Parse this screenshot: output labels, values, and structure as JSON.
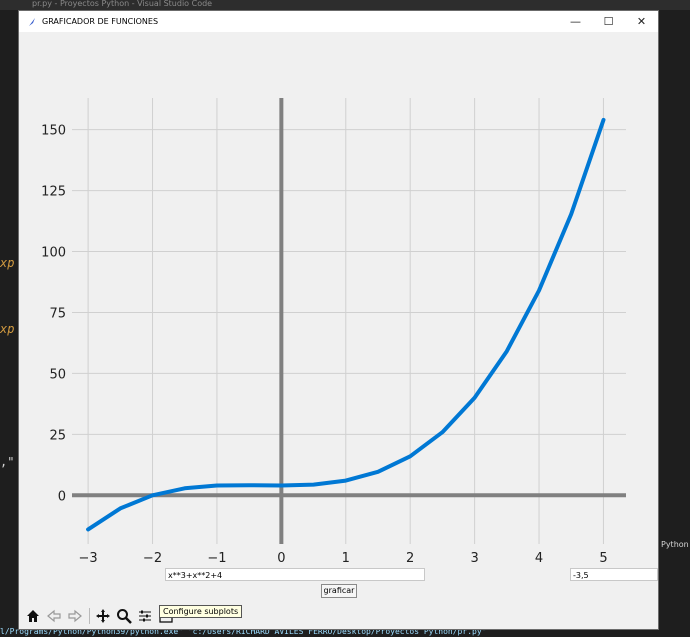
{
  "editor": {
    "title": "pr.py - Proyectos Python - Visual Studio Code",
    "frag1": "xp",
    "frag2": "xp",
    "frag3": ",\"",
    "status_python": "Python",
    "terminal": "l/Programs/Python/Python39/python.exe\" \"c:/Users/RICHARD AVILES FERRO/Desktop/Proyectos Python/pr.py\""
  },
  "window": {
    "title": "GRAFICADOR DE FUNCIONES",
    "minimize": "—",
    "maximize": "☐",
    "close": "✕"
  },
  "chart_data": {
    "type": "line",
    "title": "",
    "xlabel": "",
    "ylabel": "",
    "function": "x**3+x**2+4",
    "xlim": [
      -3.25,
      5.35
    ],
    "ylim": [
      -20,
      163
    ],
    "xticks": [
      -3,
      -2,
      -1,
      0,
      1,
      2,
      3,
      4,
      5
    ],
    "yticks": [
      0,
      25,
      50,
      75,
      100,
      125,
      150
    ],
    "xtick_labels": [
      "−3",
      "−2",
      "−1",
      "0",
      "1",
      "2",
      "3",
      "4",
      "5"
    ],
    "ytick_labels": [
      "0",
      "25",
      "50",
      "75",
      "100",
      "125",
      "150"
    ],
    "grid": true,
    "line_color": "#0078d4",
    "axis_color": "#808080",
    "series": [
      {
        "x": [
          -3,
          -2.5,
          -2,
          -1.5,
          -1,
          -0.5,
          0,
          0.5,
          1,
          1.5,
          2,
          2.5,
          3,
          3.5,
          4,
          4.5,
          5
        ],
        "values": [
          -14,
          -5.375,
          0,
          2.875,
          4,
          4.125,
          4,
          4.375,
          6,
          9.625,
          16,
          25.875,
          40,
          59.125,
          84,
          115.375,
          154
        ]
      }
    ]
  },
  "controls": {
    "function_input": "x**3+x**2+4",
    "range_input": "-3,5",
    "graph_button": "graficar",
    "tooltip": "Configure subplots"
  },
  "toolbar": {
    "icons": [
      "home-icon",
      "back-icon",
      "forward-icon",
      "pan-icon",
      "zoom-icon",
      "subplots-icon",
      "save-icon"
    ]
  }
}
